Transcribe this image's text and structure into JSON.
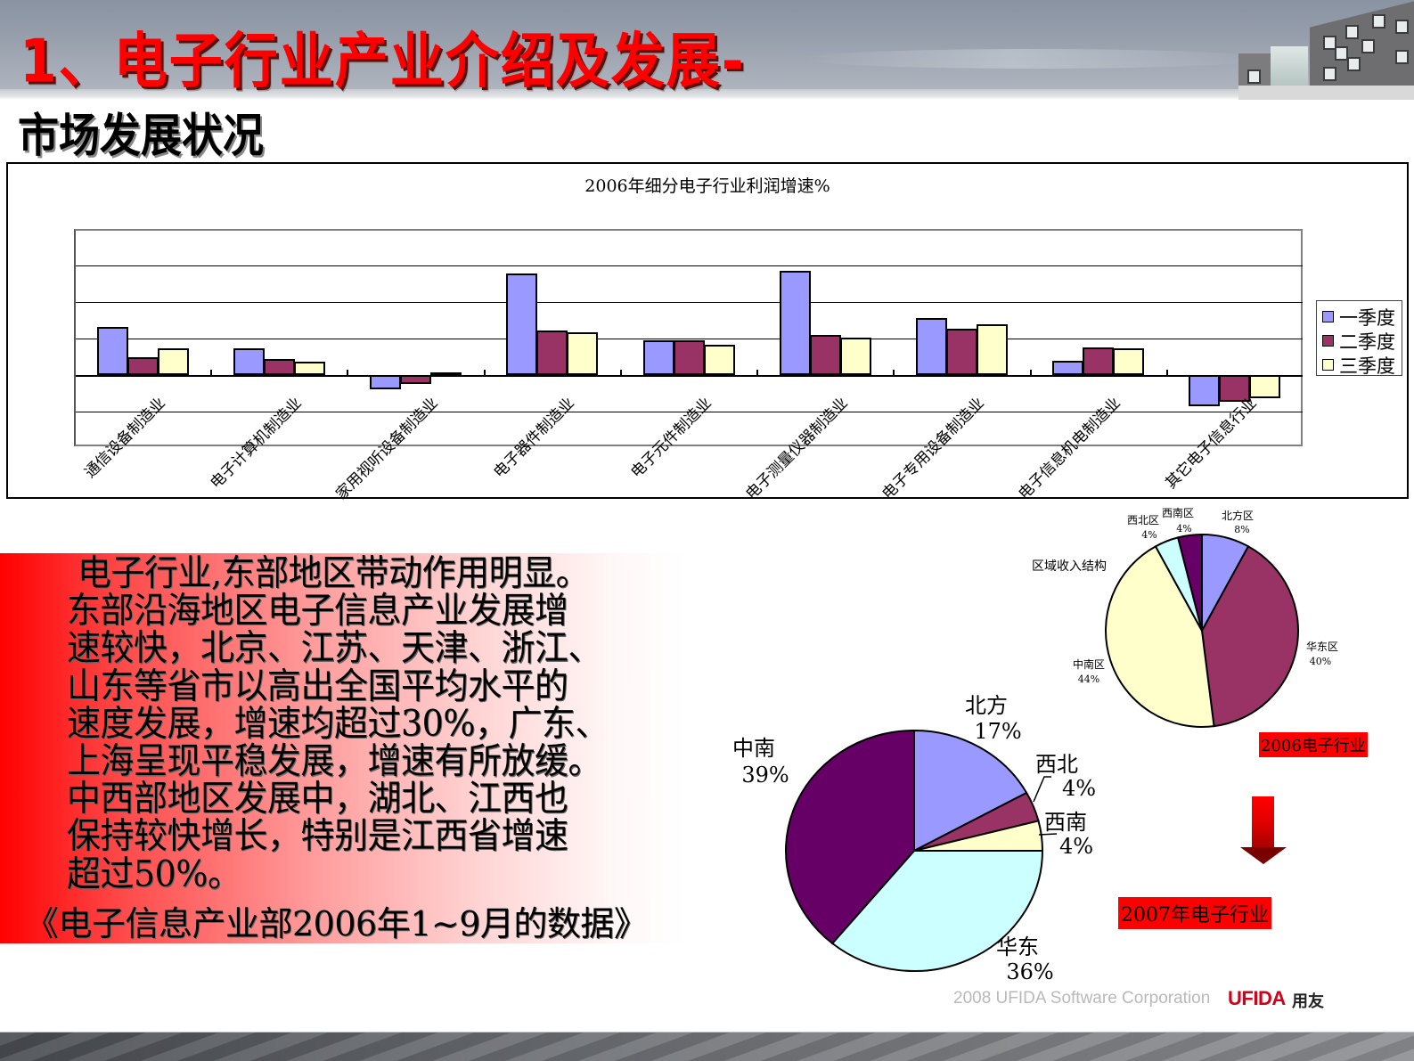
{
  "header": {
    "title": "1、电子行业产业介绍及发展-",
    "subtitle": "市场发展状况"
  },
  "chart_data": [
    {
      "type": "bar",
      "title": "2006年细分电子行业利润增速%",
      "xlabel": "",
      "ylabel": "",
      "ylim": [
        -100,
        200
      ],
      "yticks": [
        200,
        150,
        100,
        50,
        0,
        -50,
        -100
      ],
      "grid": true,
      "legend_position": "right",
      "categories": [
        "通信设备制造业",
        "电子计算机制造业",
        "家用视听设备制造业",
        "电子器件制造业",
        "电子元件制造业",
        "电子测量仪器制造业",
        "电子专用设备制造业",
        "电子信息机电制造业",
        "其它电子信息行业"
      ],
      "series": [
        {
          "name": "一季度",
          "color": "#9999ff",
          "values": [
            66,
            36,
            -20,
            139,
            48,
            143,
            78,
            20,
            -43
          ]
        },
        {
          "name": "二季度",
          "color": "#993366",
          "values": [
            25,
            22,
            -12,
            61,
            48,
            55,
            63,
            38,
            -37
          ]
        },
        {
          "name": "三季度",
          "color": "#ffffcc",
          "values": [
            36,
            18,
            4,
            58,
            41,
            51,
            70,
            36,
            -32
          ]
        }
      ]
    },
    {
      "type": "pie",
      "title": "区域收入结构",
      "caption": "2006电子行业",
      "slices": [
        {
          "label": "北方区",
          "value": 8,
          "pct": "8%",
          "color": "#9999ff"
        },
        {
          "label": "华东区",
          "value": 40,
          "pct": "40%",
          "color": "#993366"
        },
        {
          "label": "中南区",
          "value": 44,
          "pct": "44%",
          "color": "#ffffcc"
        },
        {
          "label": "西北区",
          "value": 4,
          "pct": "4%",
          "color": "#ccffff"
        },
        {
          "label": "西南区",
          "value": 4,
          "pct": "4%",
          "color": "#660066"
        }
      ]
    },
    {
      "type": "pie",
      "title": "",
      "caption": "2007年电子行业",
      "slices": [
        {
          "label": "北方",
          "value": 17,
          "pct": "17%",
          "color": "#9999ff"
        },
        {
          "label": "西北",
          "value": 4,
          "pct": "4%",
          "color": "#993366"
        },
        {
          "label": "西南",
          "value": 4,
          "pct": "4%",
          "color": "#ffffcc"
        },
        {
          "label": "华东",
          "value": 36,
          "pct": "36%",
          "color": "#ccffff"
        },
        {
          "label": "中南",
          "value": 39,
          "pct": "39%",
          "color": "#660066"
        }
      ]
    }
  ],
  "body": {
    "lines": [
      "电子行业,东部地区带动作用明显。",
      "东部沿海地区电子信息产业发展增",
      "速较快，北京、江苏、天津、浙江、",
      "山东等省市以高出全国平均水平的",
      "速度发展，增速均超过30%，广东、",
      "上海呈现平稳发展，增速有所放缓。",
      "中西部地区发展中，湖北、江西也",
      "保持较快增长，特别是江西省增速",
      "超过50%。"
    ],
    "citation": "《电子信息产业部2006年1~9月的数据》"
  },
  "badges": {
    "year_2006": "2006电子行业",
    "year_2007": "2007年电子行业"
  },
  "footer": {
    "credit": "2008 UFIDA Software Corporation",
    "brand": "UFIDA",
    "brand_cn": "用友"
  },
  "colors": {
    "title_red": "#ff0000",
    "q1": "#9999ff",
    "q2": "#993366",
    "q3": "#ffffcc"
  }
}
